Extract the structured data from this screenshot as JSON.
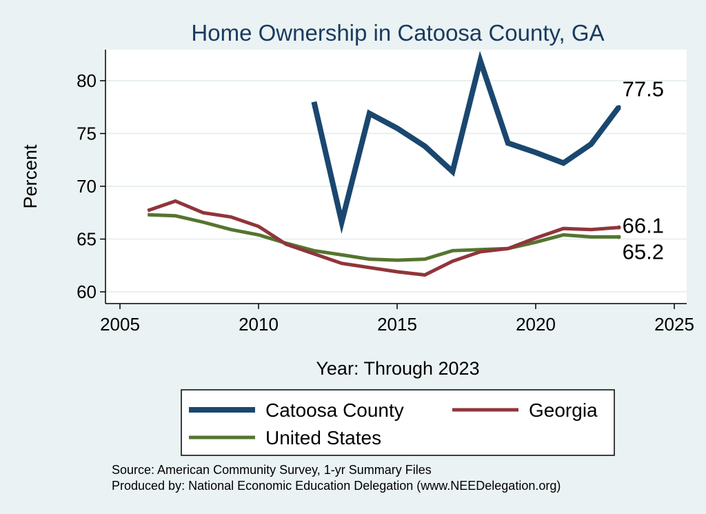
{
  "chart_data": {
    "type": "line",
    "title": "Home Ownership in Catoosa County, GA",
    "xlabel": "Year: Through 2023",
    "ylabel": "Percent",
    "xlim": [
      2005,
      2025
    ],
    "ylim": [
      59.5,
      83
    ],
    "xticks": [
      2005,
      2010,
      2015,
      2020,
      2025
    ],
    "yticks": [
      60,
      65,
      70,
      75,
      80
    ],
    "grid": true,
    "legend_position": "bottom",
    "series": [
      {
        "name": "Catoosa County",
        "color": "#1a476f",
        "x": [
          2012,
          2013,
          2014,
          2015,
          2016,
          2017,
          2018,
          2019,
          2020,
          2021,
          2022,
          2023
        ],
        "y": [
          78.0,
          66.6,
          76.9,
          75.5,
          73.8,
          71.4,
          81.9,
          74.1,
          73.2,
          72.2,
          74.0,
          77.5
        ]
      },
      {
        "name": "Georgia",
        "color": "#90353b",
        "x": [
          2006,
          2007,
          2008,
          2009,
          2010,
          2011,
          2012,
          2013,
          2014,
          2015,
          2016,
          2017,
          2018,
          2019,
          2020,
          2021,
          2022,
          2023
        ],
        "y": [
          67.7,
          68.6,
          67.5,
          67.1,
          66.2,
          64.5,
          63.6,
          62.7,
          62.3,
          61.9,
          61.6,
          62.9,
          63.8,
          64.1,
          65.1,
          66.0,
          65.9,
          66.1
        ]
      },
      {
        "name": "United States",
        "color": "#55752f",
        "x": [
          2006,
          2007,
          2008,
          2009,
          2010,
          2011,
          2012,
          2013,
          2014,
          2015,
          2016,
          2017,
          2018,
          2019,
          2020,
          2021,
          2022,
          2023
        ],
        "y": [
          67.3,
          67.2,
          66.6,
          65.9,
          65.4,
          64.6,
          63.9,
          63.5,
          63.1,
          63.0,
          63.1,
          63.9,
          64.0,
          64.1,
          64.7,
          65.4,
          65.2,
          65.2
        ]
      }
    ],
    "end_labels": [
      {
        "series": "Catoosa County",
        "text": "77.5"
      },
      {
        "series": "Georgia",
        "text": "66.1"
      },
      {
        "series": "United States",
        "text": "65.2"
      }
    ]
  },
  "footer": {
    "source": "Source: American Community Survey, 1-yr Summary Files",
    "produced_by": "Produced by: National Economic Education Delegation (www.NEEDelegation.org)"
  }
}
